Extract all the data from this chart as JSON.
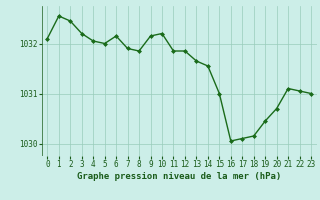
{
  "x": [
    0,
    1,
    2,
    3,
    4,
    5,
    6,
    7,
    8,
    9,
    10,
    11,
    12,
    13,
    14,
    15,
    16,
    17,
    18,
    19,
    20,
    21,
    22,
    23
  ],
  "y": [
    1032.1,
    1032.55,
    1032.45,
    1032.2,
    1032.05,
    1032.0,
    1032.15,
    1031.9,
    1031.85,
    1032.15,
    1032.2,
    1031.85,
    1031.85,
    1031.65,
    1031.55,
    1031.0,
    1030.05,
    1030.1,
    1030.15,
    1030.45,
    1030.7,
    1031.1,
    1031.05,
    1031.0
  ],
  "line_color": "#1a6b1a",
  "marker": "D",
  "marker_size": 2.0,
  "bg_color": "#cceee8",
  "grid_color": "#99ccbb",
  "xlabel": "Graphe pression niveau de la mer (hPa)",
  "xlabel_color": "#1a5c1a",
  "tick_color": "#1a5c1a",
  "ylim": [
    1029.75,
    1032.75
  ],
  "yticks": [
    1030,
    1031,
    1032
  ],
  "xlim": [
    -0.5,
    23.5
  ],
  "xticks": [
    0,
    1,
    2,
    3,
    4,
    5,
    6,
    7,
    8,
    9,
    10,
    11,
    12,
    13,
    14,
    15,
    16,
    17,
    18,
    19,
    20,
    21,
    22,
    23
  ],
  "xlabel_fontsize": 6.5,
  "tick_fontsize": 5.5,
  "linewidth": 1.0
}
